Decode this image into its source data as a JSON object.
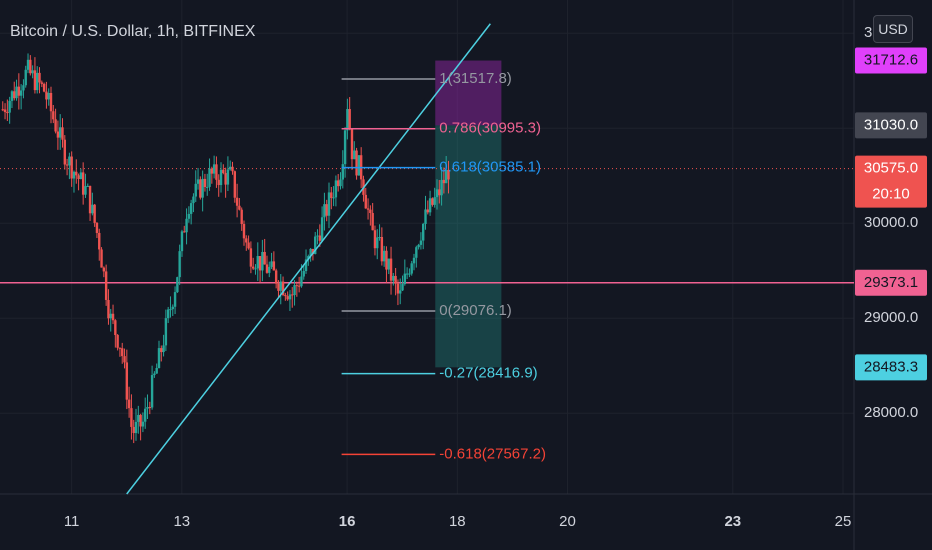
{
  "header": {
    "title": "Bitcoin / U.S. Dollar, 1h, BITFINEX",
    "currency": "USD"
  },
  "colors": {
    "background": "#131722",
    "grid": "#1e222d",
    "axis_text": "#d1d4dc",
    "candle_up": "#26a69a",
    "candle_down": "#ef5350",
    "trendline": "#4dd0e1",
    "hline": "#f06292",
    "fib_level_1": "#9598a1",
    "fib_level_0786": "#f06292",
    "fib_level_0618": "#2196f3",
    "fib_level_0": "#9598a1",
    "fib_level_m027": "#4dd0e1",
    "fib_level_m0618": "#f44336",
    "target_zone": "#26a69a",
    "stop_zone": "#9c27b0"
  },
  "chart_data": {
    "type": "candlestick",
    "symbol": "Bitcoin / U.S. Dollar",
    "interval": "1h",
    "exchange": "BITFINEX",
    "ylim": [
      27150,
      32350
    ],
    "xlim": [
      9.7,
      25.2
    ],
    "x_ticks": [
      "11",
      "13",
      "16",
      "18",
      "20",
      "23",
      "25"
    ],
    "x_tick_values": [
      11,
      13,
      16,
      18,
      20,
      23,
      25
    ],
    "y_tick_values": [
      28000,
      29000,
      30000
    ],
    "y_ticks": [
      "28000.0",
      "29000.0",
      "30000.0"
    ],
    "y_tick_partial": "3",
    "price_anchors": [
      {
        "x": 9.75,
        "y": 31200
      },
      {
        "x": 10.2,
        "y": 31600
      },
      {
        "x": 10.5,
        "y": 31400
      },
      {
        "x": 10.9,
        "y": 30700
      },
      {
        "x": 11.3,
        "y": 30300
      },
      {
        "x": 11.5,
        "y": 29800
      },
      {
        "x": 11.7,
        "y": 29000
      },
      {
        "x": 11.9,
        "y": 28700
      },
      {
        "x": 12.1,
        "y": 27800
      },
      {
        "x": 12.3,
        "y": 27900
      },
      {
        "x": 12.6,
        "y": 28600
      },
      {
        "x": 12.9,
        "y": 29400
      },
      {
        "x": 13.1,
        "y": 30200
      },
      {
        "x": 13.5,
        "y": 30500
      },
      {
        "x": 13.9,
        "y": 30500
      },
      {
        "x": 14.2,
        "y": 29700
      },
      {
        "x": 14.6,
        "y": 29500
      },
      {
        "x": 15.0,
        "y": 29250
      },
      {
        "x": 15.3,
        "y": 29600
      },
      {
        "x": 15.6,
        "y": 30100
      },
      {
        "x": 15.9,
        "y": 30600
      },
      {
        "x": 16.0,
        "y": 31300
      },
      {
        "x": 16.1,
        "y": 30700
      },
      {
        "x": 16.25,
        "y": 30550
      },
      {
        "x": 16.45,
        "y": 29900
      },
      {
        "x": 16.7,
        "y": 29600
      },
      {
        "x": 16.95,
        "y": 29200
      },
      {
        "x": 17.2,
        "y": 29700
      },
      {
        "x": 17.45,
        "y": 30100
      },
      {
        "x": 17.65,
        "y": 30300
      },
      {
        "x": 17.85,
        "y": 30580
      }
    ],
    "trendline": [
      {
        "x": 12.0,
        "y": 27150
      },
      {
        "x": 18.6,
        "y": 32100
      }
    ],
    "horizontal_line": {
      "price": 29373.1,
      "label": "29373.1"
    },
    "current_price_line": {
      "price": 30575.0
    },
    "fibonacci": {
      "x_start": 15.9,
      "x_end": 17.6,
      "levels": [
        {
          "ratio": "1",
          "price": 31517.8,
          "label": "1(31517.8)",
          "color_key": "fib_level_1"
        },
        {
          "ratio": "0.786",
          "price": 30995.3,
          "label": "0.786(30995.3)",
          "color_key": "fib_level_0786"
        },
        {
          "ratio": "0.618",
          "price": 30585.1,
          "label": "0.618(30585.1)",
          "color_key": "fib_level_0618"
        },
        {
          "ratio": "0",
          "price": 29076.1,
          "label": "0(29076.1)",
          "color_key": "fib_level_0"
        },
        {
          "ratio": "-0.27",
          "price": 28416.9,
          "label": "-0.27(28416.9)",
          "color_key": "fib_level_m027"
        },
        {
          "ratio": "-0.618",
          "price": 27567.2,
          "label": "-0.618(27567.2)",
          "color_key": "fib_level_m0618"
        }
      ]
    },
    "position_tool": {
      "x_start": 17.6,
      "x_end": 18.8,
      "stop_price": 31712.6,
      "entry_price": 31030.0,
      "target_price": 28483.3
    },
    "price_labels": [
      {
        "price": 31712.6,
        "text": "31712.6",
        "bg": "#e040fb",
        "fg": "#131722"
      },
      {
        "price": 31030.0,
        "text": "31030.0",
        "bg": "#434651",
        "fg": "#ffffff"
      },
      {
        "price": 30575.0,
        "text": "30575.0",
        "text2": "20:10",
        "bg": "#ef5350",
        "fg": "#ffffff"
      },
      {
        "price": 29373.1,
        "text": "29373.1",
        "bg": "#f06292",
        "fg": "#131722"
      },
      {
        "price": 28483.3,
        "text": "28483.3",
        "bg": "#4dd0e1",
        "fg": "#131722"
      }
    ]
  }
}
